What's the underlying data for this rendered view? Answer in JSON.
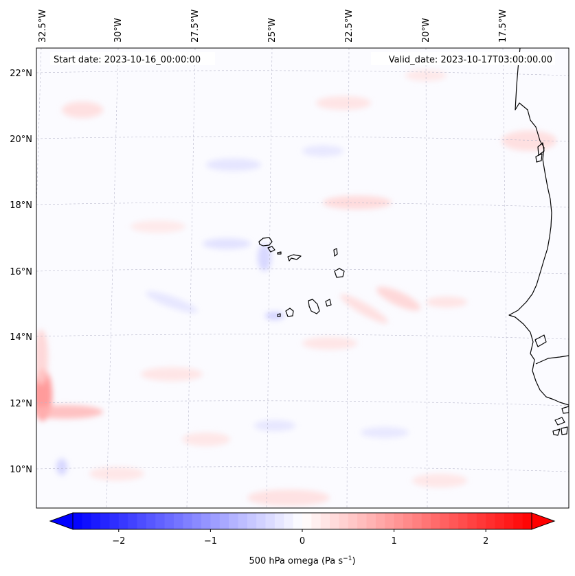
{
  "map": {
    "start_label": "Start date: 2023-10-16_00:00:00",
    "valid_label": "Valid_date: 2023-10-17T03:00:00.00",
    "lon_labels": [
      "32.5°W",
      "30°W",
      "27.5°W",
      "25°W",
      "22.5°W",
      "20°W",
      "17.5°W"
    ],
    "lat_labels": [
      "22°N",
      "20°N",
      "18°N",
      "16°N",
      "14°N",
      "12°N",
      "10°N"
    ],
    "field_colors": {
      "positive": "#ff0000",
      "negative": "#0000ff",
      "zero": "#ffffff"
    },
    "coastline_color": "#000000",
    "gridline_color": "#b0b0c8"
  },
  "colorbar": {
    "label": "500 hPa omega (Pa s",
    "label_exponent": "−1",
    "label_close": ")",
    "tick_labels": [
      "−2",
      "−1",
      "0",
      "1",
      "2"
    ],
    "tick_values": [
      -2,
      -1,
      0,
      1,
      2
    ],
    "range": [
      -2.5,
      2.5
    ],
    "levels": 50,
    "extend": "both",
    "cmap": "bwr"
  }
}
